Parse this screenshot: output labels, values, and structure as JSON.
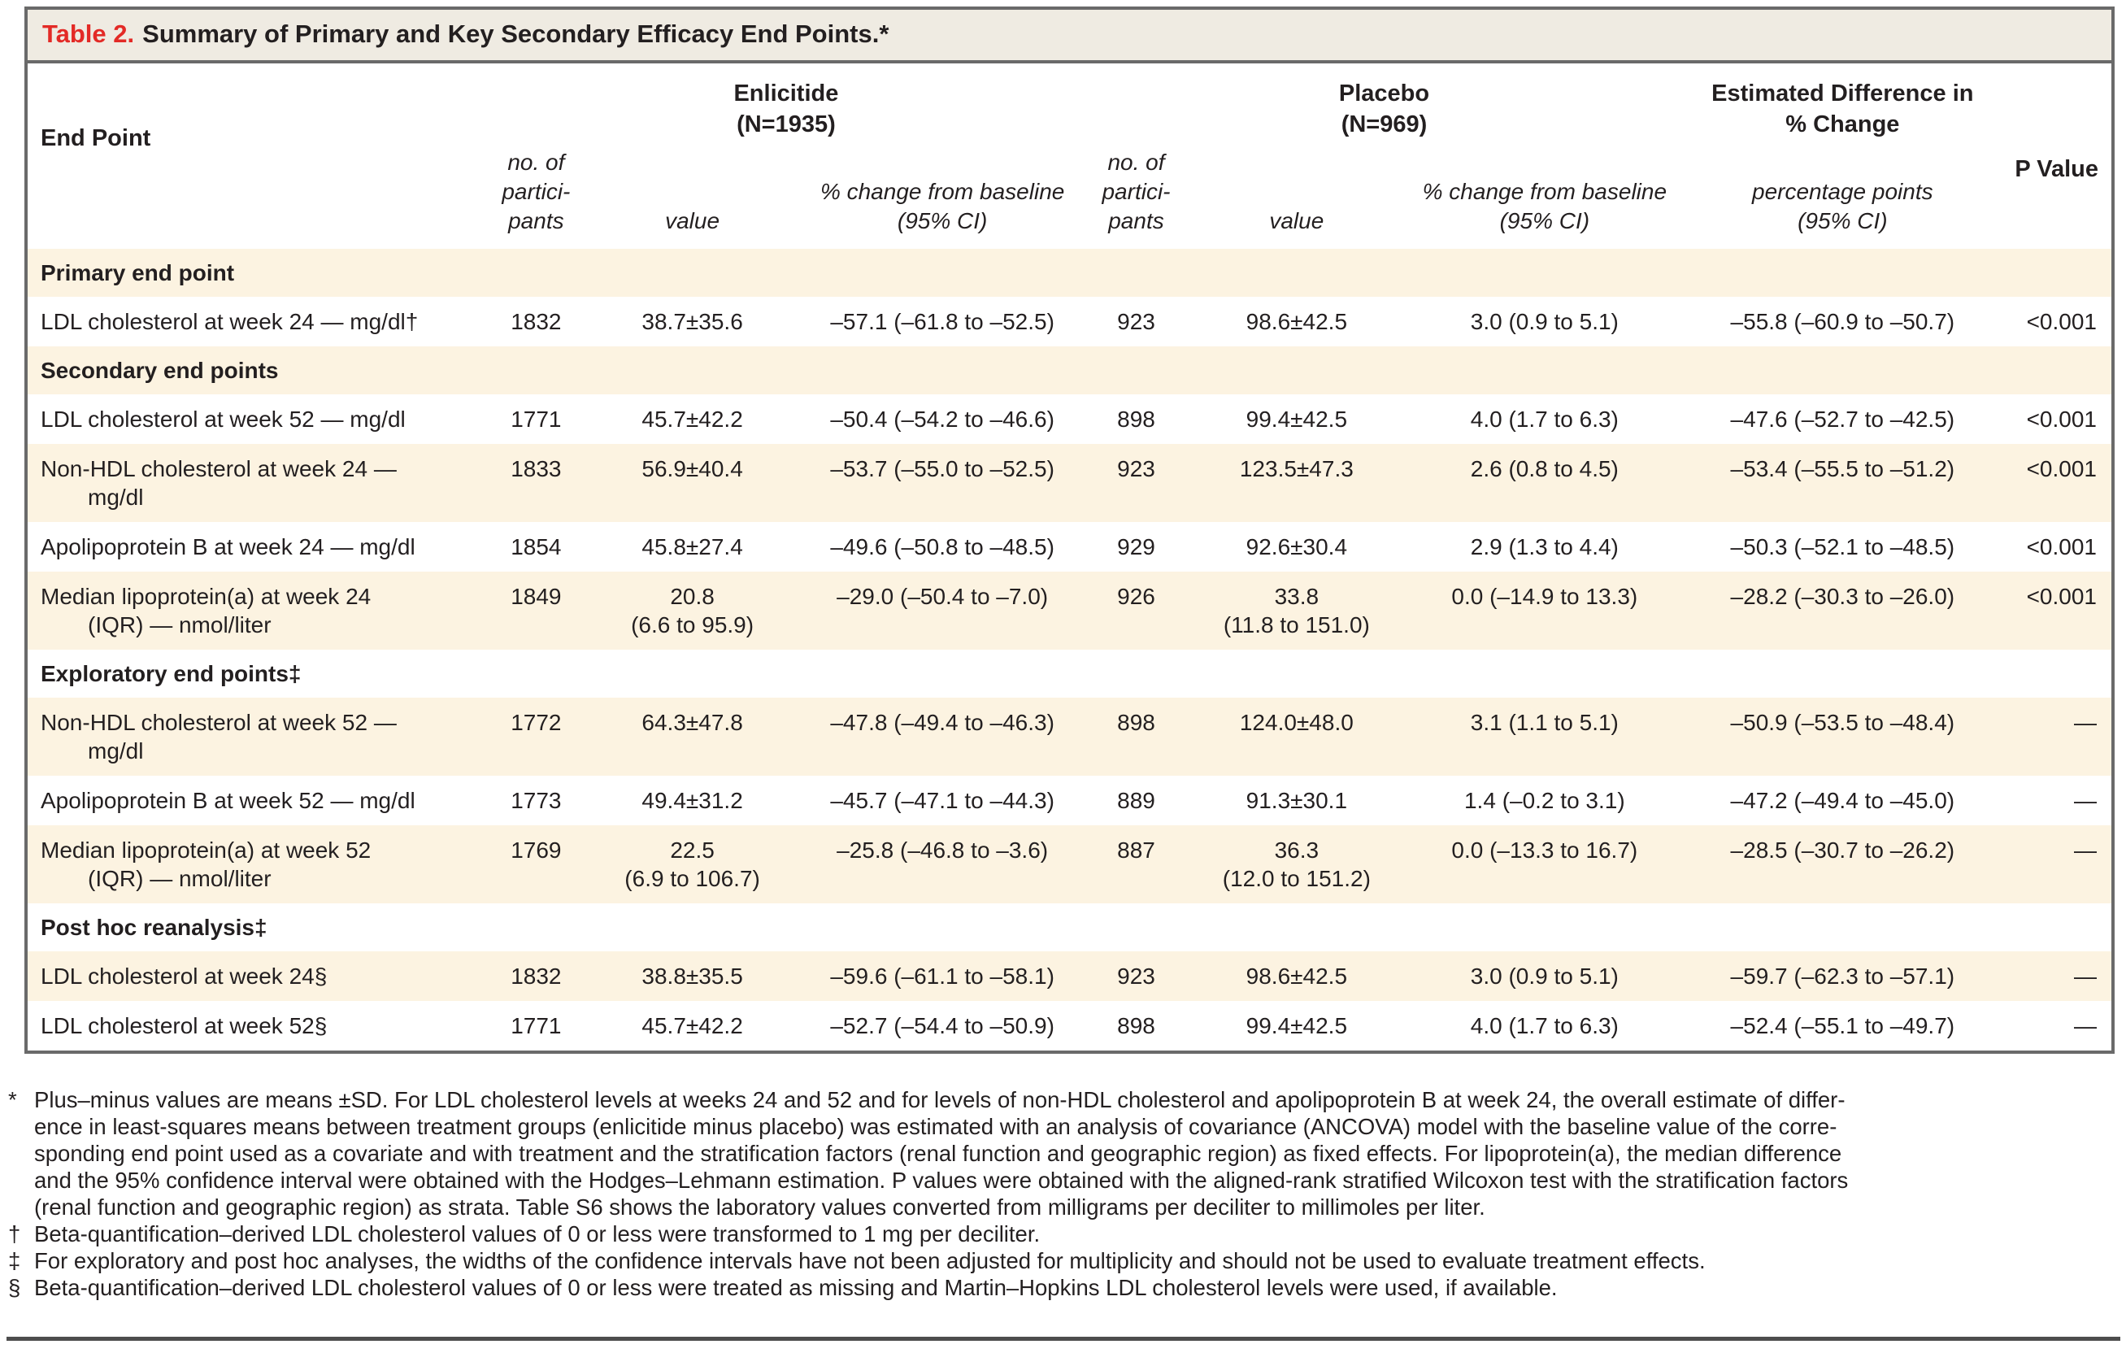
{
  "title": {
    "label": "Table 2.",
    "text": "Summary of Primary and Key Secondary Efficacy End Points.*"
  },
  "header": {
    "end_point": "End Point",
    "enlicitide_group": "Enlicitide\n(N=1935)",
    "placebo_group": "Placebo\n(N=969)",
    "estimated_difference_group": "Estimated Difference in\n% Change",
    "p_value": "P Value",
    "subheads": [
      "no. of\npartici-\npants",
      "value",
      "% change from baseline\n(95% CI)",
      "no. of\npartici-\npants",
      "value",
      "% change from baseline\n(95% CI)",
      "percentage points\n(95% CI)"
    ]
  },
  "table": {
    "rows": [
      {
        "type": "section",
        "label": "Primary end point"
      },
      {
        "type": "data",
        "label": "LDL cholesterol at week 24 — mg/dl†",
        "cells": [
          "1832",
          "38.7±35.6",
          "–57.1 (–61.8 to –52.5)",
          "923",
          "98.6±42.5",
          "3.0 (0.9 to 5.1)",
          "–55.8 (–60.9 to –50.7)",
          "<0.001"
        ]
      },
      {
        "type": "section",
        "label": "Secondary end points"
      },
      {
        "type": "data",
        "label": "LDL cholesterol at week 52 — mg/dl",
        "cells": [
          "1771",
          "45.7±42.2",
          "–50.4 (–54.2 to –46.6)",
          "898",
          "99.4±42.5",
          "4.0 (1.7 to 6.3)",
          "–47.6 (–52.7 to –42.5)",
          "<0.001"
        ]
      },
      {
        "type": "data",
        "label": "Non-HDL cholesterol at week 24 —\nmg/dl",
        "cells": [
          "1833",
          "56.9±40.4",
          "–53.7 (–55.0 to –52.5)",
          "923",
          "123.5±47.3",
          "2.6 (0.8 to 4.5)",
          "–53.4 (–55.5 to –51.2)",
          "<0.001"
        ]
      },
      {
        "type": "data",
        "label": "Apolipoprotein B at week 24 — mg/dl",
        "cells": [
          "1854",
          "45.8±27.4",
          "–49.6 (–50.8 to –48.5)",
          "929",
          "92.6±30.4",
          "2.9 (1.3 to 4.4)",
          "–50.3 (–52.1 to –48.5)",
          "<0.001"
        ]
      },
      {
        "type": "data",
        "label": "Median lipoprotein(a) at week 24\n(IQR) — nmol/liter",
        "cells": [
          "1849",
          "20.8\n(6.6 to 95.9)",
          "–29.0 (–50.4 to –7.0)",
          "926",
          "33.8\n(11.8 to 151.0)",
          "0.0 (–14.9 to 13.3)",
          "–28.2 (–30.3 to –26.0)",
          "<0.001"
        ]
      },
      {
        "type": "section",
        "label": "Exploratory end points‡"
      },
      {
        "type": "data",
        "label": "Non-HDL cholesterol at week 52 —\nmg/dl",
        "cells": [
          "1772",
          "64.3±47.8",
          "–47.8 (–49.4 to –46.3)",
          "898",
          "124.0±48.0",
          "3.1 (1.1 to 5.1)",
          "–50.9 (–53.5 to –48.4)",
          "—"
        ]
      },
      {
        "type": "data",
        "label": "Apolipoprotein B at week 52 — mg/dl",
        "cells": [
          "1773",
          "49.4±31.2",
          "–45.7 (–47.1 to –44.3)",
          "889",
          "91.3±30.1",
          "1.4 (–0.2 to 3.1)",
          "–47.2 (–49.4 to –45.0)",
          "—"
        ]
      },
      {
        "type": "data",
        "label": "Median lipoprotein(a) at week 52\n(IQR) — nmol/liter",
        "cells": [
          "1769",
          "22.5\n(6.9 to 106.7)",
          "–25.8 (–46.8 to –3.6)",
          "887",
          "36.3\n(12.0 to 151.2)",
          "0.0 (–13.3 to 16.7)",
          "–28.5 (–30.7 to –26.2)",
          "—"
        ]
      },
      {
        "type": "section",
        "label": "Post hoc reanalysis‡"
      },
      {
        "type": "data",
        "label": "LDL cholesterol at week 24§",
        "cells": [
          "1832",
          "38.8±35.5",
          "–59.6 (–61.1 to –58.1)",
          "923",
          "98.6±42.5",
          "3.0 (0.9 to 5.1)",
          "–59.7 (–62.3 to –57.1)",
          "—"
        ]
      },
      {
        "type": "data",
        "label": "LDL cholesterol at week 52§",
        "cells": [
          "1771",
          "45.7±42.2",
          "–52.7 (–54.4 to –50.9)",
          "898",
          "99.4±42.5",
          "4.0 (1.7 to 6.3)",
          "–52.4 (–55.1 to –49.7)",
          "—"
        ]
      }
    ]
  },
  "footnotes": [
    {
      "marker": "*",
      "text": "Plus–minus values are means ±SD. For LDL cholesterol levels at weeks 24 and 52 and for levels of non-HDL cholesterol and apolipoprotein B at week 24, the overall estimate of differ-\nence in least-squares means between treatment groups (enlicitide minus placebo) was estimated with an analysis of covariance (ANCOVA) model with the baseline value of the corre-\nsponding end point used as a covariate and with treatment and the stratification factors (renal function and geographic region) as fixed effects. For lipoprotein(a), the median difference\nand the 95% confidence interval were obtained with the Hodges–Lehmann estimation. P values were obtained with the aligned-rank stratified Wilcoxon test with the stratification factors\n(renal function and geographic region) as strata. Table S6 shows the laboratory values converted from milligrams per deciliter to millimoles per liter."
    },
    {
      "marker": "†",
      "text": "Beta-quantification–derived LDL cholesterol values of 0 or less were transformed to 1 mg per deciliter."
    },
    {
      "marker": "‡",
      "text": "For exploratory and post hoc analyses, the widths of the confidence intervals have not been adjusted for multiplicity and should not be used to evaluate treatment effects."
    },
    {
      "marker": "§",
      "text": "Beta-quantification–derived LDL cholesterol values of 0 or less were treated as missing and Martin–Hopkins LDL cholesterol levels were used, if available."
    }
  ],
  "colors": {
    "accent_red": "#e32a26",
    "row_shade": "#fcf3e1",
    "title_bar_bg": "#efebe2",
    "border_gray": "#6a6a6a",
    "text": "#231f20"
  }
}
